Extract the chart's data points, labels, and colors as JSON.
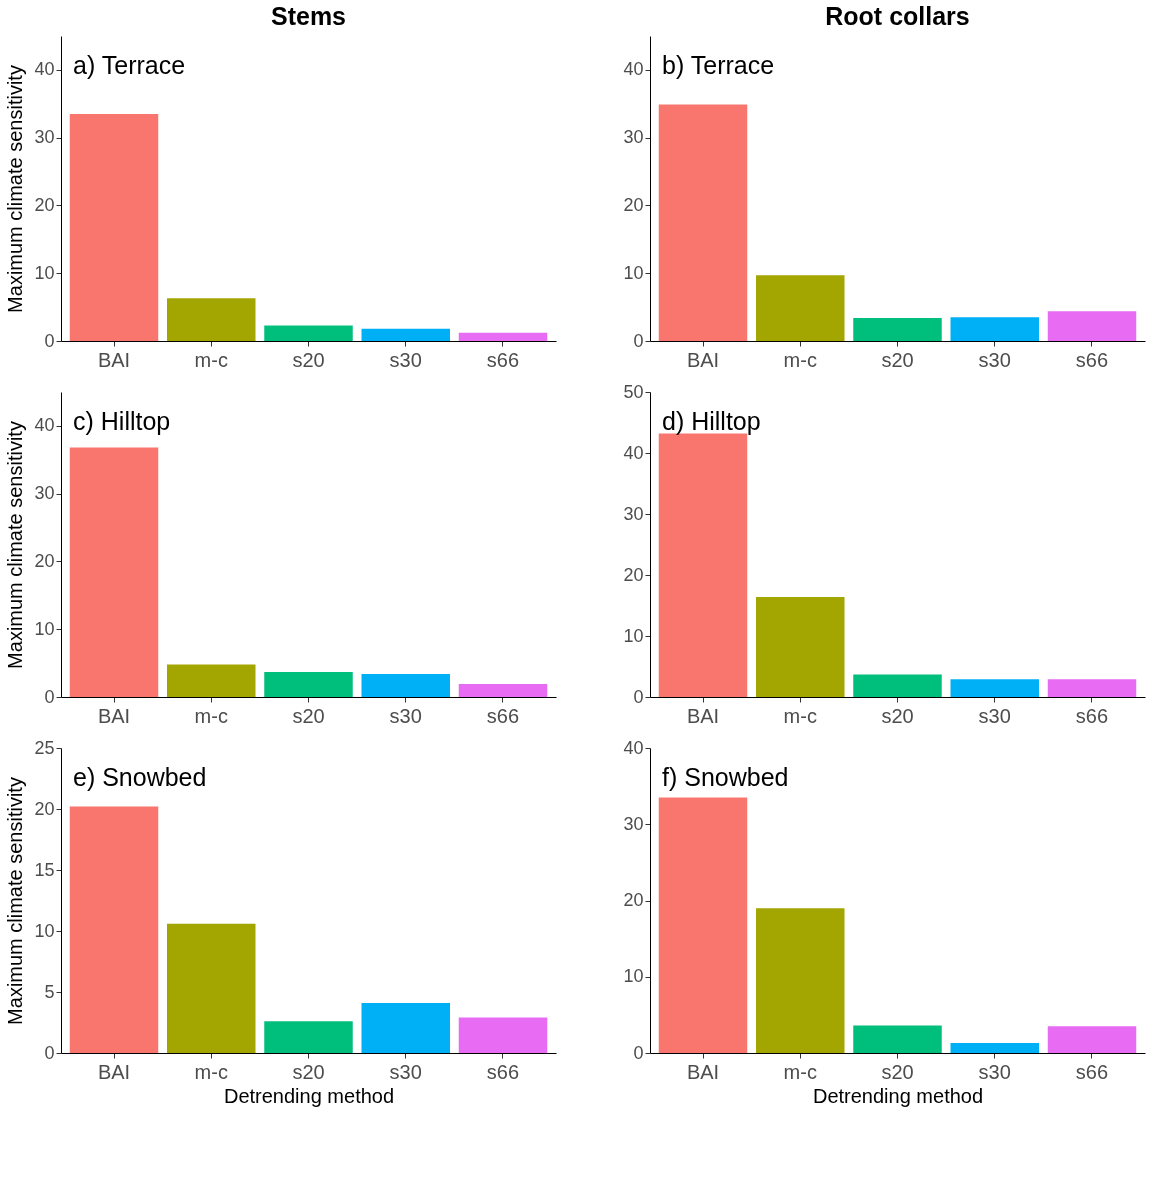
{
  "chart_data": [
    {
      "type": "bar",
      "title": "Stems",
      "annotations": [
        "a) Terrace"
      ],
      "ylabel": "Maximum climate sensitivity",
      "categories": [
        "BAI",
        "m-c",
        "s20",
        "s30",
        "s66"
      ],
      "values": [
        33.5,
        6.3,
        2.3,
        1.8,
        1.2
      ],
      "colors": [
        "#f8766d",
        "#a3a500",
        "#00bf7d",
        "#00b0f6",
        "#e76bf3"
      ],
      "ylim": [
        0,
        45
      ],
      "yticks": [
        0,
        10,
        20,
        30,
        40
      ]
    },
    {
      "type": "bar",
      "title": "Root collars",
      "annotations": [
        "b) Terrace"
      ],
      "categories": [
        "BAI",
        "m-c",
        "s20",
        "s30",
        "s66"
      ],
      "values": [
        34.9,
        9.7,
        3.4,
        3.5,
        4.4
      ],
      "colors": [
        "#f8766d",
        "#a3a500",
        "#00bf7d",
        "#00b0f6",
        "#e76bf3"
      ],
      "ylim": [
        0,
        45
      ],
      "yticks": [
        0,
        10,
        20,
        30,
        40
      ]
    },
    {
      "type": "bar",
      "annotations": [
        "c) Hilltop"
      ],
      "ylabel": "Maximum climate sensitivity",
      "categories": [
        "BAI",
        "m-c",
        "s20",
        "s30",
        "s66"
      ],
      "values": [
        36.8,
        4.8,
        3.7,
        3.4,
        1.9
      ],
      "colors": [
        "#f8766d",
        "#a3a500",
        "#00bf7d",
        "#00b0f6",
        "#e76bf3"
      ],
      "ylim": [
        0,
        45
      ],
      "yticks": [
        0,
        10,
        20,
        30,
        40
      ]
    },
    {
      "type": "bar",
      "annotations": [
        "d) Hilltop"
      ],
      "categories": [
        "BAI",
        "m-c",
        "s20",
        "s30",
        "s66"
      ],
      "values": [
        43.2,
        16.4,
        3.7,
        2.9,
        2.9
      ],
      "colors": [
        "#f8766d",
        "#a3a500",
        "#00bf7d",
        "#00b0f6",
        "#e76bf3"
      ],
      "ylim": [
        0,
        50
      ],
      "yticks": [
        0,
        10,
        20,
        30,
        40,
        50
      ]
    },
    {
      "type": "bar",
      "annotations": [
        "e) Snowbed"
      ],
      "ylabel": "Maximum climate sensitivity",
      "xlabel": "Detrending method",
      "categories": [
        "BAI",
        "m-c",
        "s20",
        "s30",
        "s66"
      ],
      "values": [
        20.2,
        10.6,
        2.6,
        4.1,
        2.9
      ],
      "colors": [
        "#f8766d",
        "#a3a500",
        "#00bf7d",
        "#00b0f6",
        "#e76bf3"
      ],
      "ylim": [
        0,
        25
      ],
      "yticks": [
        0,
        5,
        10,
        15,
        20,
        25
      ]
    },
    {
      "type": "bar",
      "annotations": [
        "f) Snowbed"
      ],
      "xlabel": "Detrending method",
      "categories": [
        "BAI",
        "m-c",
        "s20",
        "s30",
        "s66"
      ],
      "values": [
        33.5,
        19.0,
        3.6,
        1.3,
        3.5
      ],
      "colors": [
        "#f8766d",
        "#a3a500",
        "#00bf7d",
        "#00b0f6",
        "#e76bf3"
      ],
      "ylim": [
        0,
        40
      ],
      "yticks": [
        0,
        10,
        20,
        30,
        40
      ]
    }
  ]
}
